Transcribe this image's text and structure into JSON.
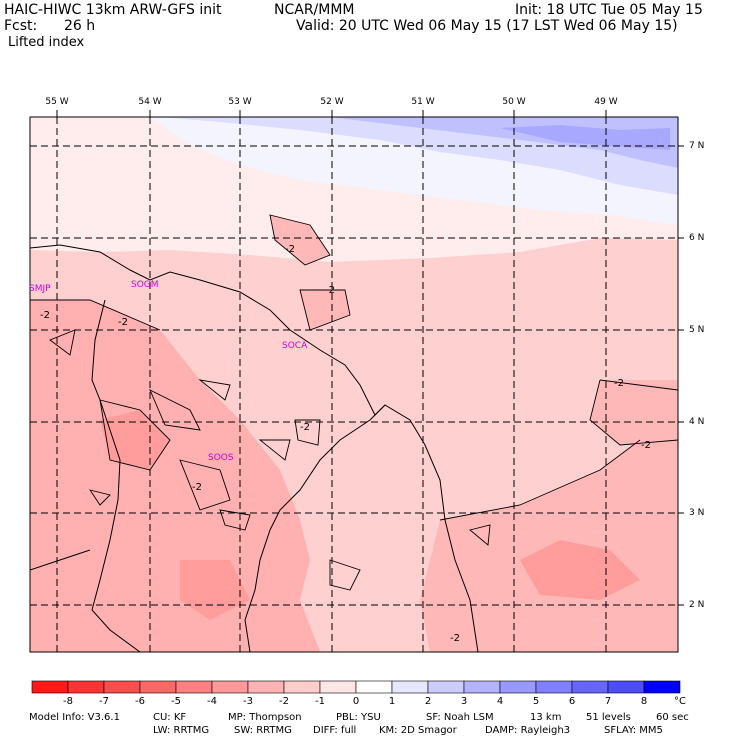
{
  "header": {
    "model_title": "HAIC-HIWC 13km ARW-GFS init",
    "org": "NCAR/MMM",
    "init": "Init: 18 UTC Tue 05 May 15",
    "fcst_label": "Fcst:",
    "fcst_value": "26 h",
    "valid": "Valid: 20 UTC Wed 06 May 15 (17 LST Wed 06 May 15)",
    "field": "Lifted index"
  },
  "map": {
    "lon_labels": [
      "55 W",
      "54 W",
      "53 W",
      "52 W",
      "51 W",
      "50 W",
      "49 W"
    ],
    "lat_labels": [
      "7 N",
      "6 N",
      "5 N",
      "4 N",
      "3 N",
      "2 N"
    ],
    "stations": [
      "SMJP",
      "SOGM",
      "SOCA",
      "SOOS"
    ],
    "contour_label": "-2",
    "field_values": {
      "northeast_band_max": 5,
      "north_white_zone": 0,
      "central_zone": -1.5,
      "southwest_zone": -3
    }
  },
  "colorbar": {
    "colors": [
      "#ff1a1a",
      "#ff3333",
      "#ff4d4d",
      "#ff6666",
      "#ff8080",
      "#ff9999",
      "#ffb3b3",
      "#ffcccc",
      "#ffe6e6",
      "#ffffff",
      "#e6e6ff",
      "#ccccff",
      "#b3b3ff",
      "#9999ff",
      "#8080ff",
      "#6666ff",
      "#4d4dff",
      "#0000ff"
    ],
    "labels": [
      "-8",
      "-7",
      "-6",
      "-5",
      "-4",
      "-3",
      "-2",
      "-1",
      "0",
      "1",
      "2",
      "3",
      "4",
      "5",
      "6",
      "7",
      "8"
    ],
    "unit": "°C"
  },
  "footer": {
    "line1": [
      "Model Info: V3.6.1",
      "CU: KF",
      "MP: Thompson",
      "PBL: YSU",
      "SF: Noah LSM",
      "13 km",
      "51 levels",
      "60 sec"
    ],
    "line2": [
      "LW: RRTMG",
      "SW: RRTMG",
      "DIFF: full",
      "KM: 2D Smagor",
      "DAMP: Rayleigh3",
      "SFLAY: MM5"
    ]
  }
}
